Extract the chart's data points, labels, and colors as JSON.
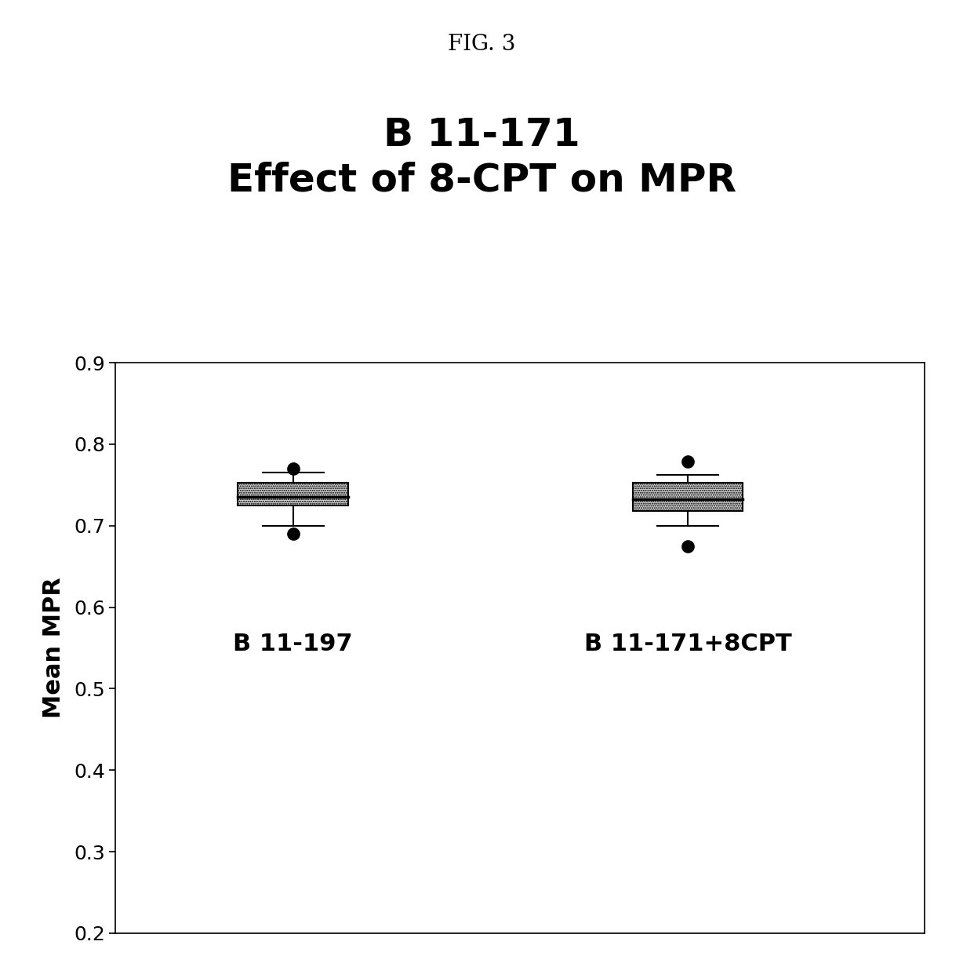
{
  "fig_title": "FIG. 3",
  "chart_title": "B 11-171\nEffect of 8-CPT on MPR",
  "ylabel": "Mean MPR",
  "ylim": [
    0.2,
    0.9
  ],
  "yticks": [
    0.2,
    0.3,
    0.4,
    0.5,
    0.6,
    0.7,
    0.8,
    0.9
  ],
  "box1": {
    "label": "B 11-197",
    "q1": 0.725,
    "median": 0.735,
    "q3": 0.753,
    "whisker_low": 0.7,
    "whisker_high": 0.765,
    "fliers": [
      0.77,
      0.69
    ],
    "x": 1
  },
  "box2": {
    "label": "B 11-171+8CPT",
    "q1": 0.718,
    "median": 0.732,
    "q3": 0.753,
    "whisker_low": 0.7,
    "whisker_high": 0.762,
    "fliers": [
      0.779,
      0.675
    ],
    "x": 2
  },
  "box_facecolor": "#d0d0d0",
  "box_edgecolor": "#000000",
  "background_color": "#ffffff",
  "label_fontsize": 22,
  "label_fontweight": "bold",
  "title_fontsize": 36,
  "title_fontweight": "bold",
  "fig_title_fontsize": 20,
  "ylabel_fontsize": 22,
  "ylabel_fontweight": "bold",
  "tick_fontsize": 18
}
